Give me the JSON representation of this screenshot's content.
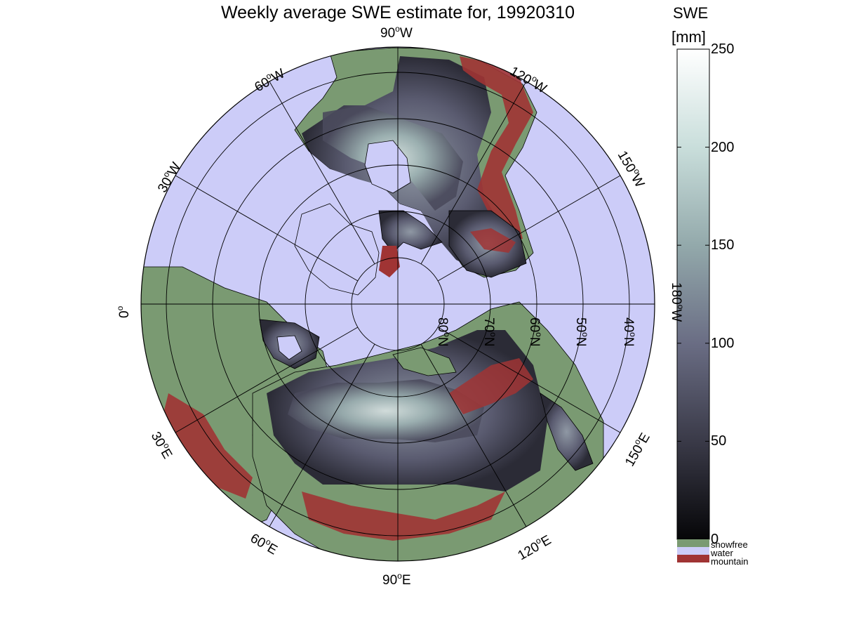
{
  "title": "Weekly average SWE estimate for, 19920310",
  "colorbar": {
    "label_line1": "SWE",
    "label_line2": "[mm]",
    "ticks": [
      {
        "value": 250,
        "label": "250"
      },
      {
        "value": 200,
        "label": "200"
      },
      {
        "value": 150,
        "label": "150"
      },
      {
        "value": 100,
        "label": "100"
      },
      {
        "value": 50,
        "label": "50"
      },
      {
        "value": 0,
        "label": "0"
      }
    ],
    "gradient": [
      "#060608",
      "#3a3a48",
      "#6a6d84",
      "#93a9ab",
      "#c9dedb",
      "#ffffff"
    ],
    "categories": [
      {
        "label": "snowfree",
        "color": "#7a9a72"
      },
      {
        "label": "water",
        "color": "#ccccf8"
      },
      {
        "label": "mountain",
        "color": "#a03434"
      }
    ]
  },
  "map": {
    "projection": "north polar stereographic",
    "ocean_color": "#ccccf8",
    "longitude_labels": [
      {
        "base": "90",
        "unit": "W",
        "name": "lon-label-90w"
      },
      {
        "base": "120",
        "unit": "W",
        "name": "lon-label-120w"
      },
      {
        "base": "150",
        "unit": "W",
        "name": "lon-label-150w"
      },
      {
        "base": "180",
        "unit": "W",
        "name": "lon-label-180w"
      },
      {
        "base": "60",
        "unit": "W",
        "name": "lon-label-60w"
      },
      {
        "base": "30",
        "unit": "W",
        "name": "lon-label-30w"
      },
      {
        "base": "0",
        "unit": "",
        "name": "lon-label-0"
      },
      {
        "base": "30",
        "unit": "E",
        "name": "lon-label-30e"
      },
      {
        "base": "60",
        "unit": "E",
        "name": "lon-label-60e"
      },
      {
        "base": "90",
        "unit": "E",
        "name": "lon-label-90e"
      },
      {
        "base": "120",
        "unit": "E",
        "name": "lon-label-120e"
      },
      {
        "base": "150",
        "unit": "E",
        "name": "lon-label-150e"
      }
    ],
    "latitude_labels": [
      {
        "base": "80",
        "unit": "N"
      },
      {
        "base": "70",
        "unit": "N"
      },
      {
        "base": "60",
        "unit": "N"
      },
      {
        "base": "50",
        "unit": "N"
      },
      {
        "base": "40",
        "unit": "N"
      }
    ]
  }
}
